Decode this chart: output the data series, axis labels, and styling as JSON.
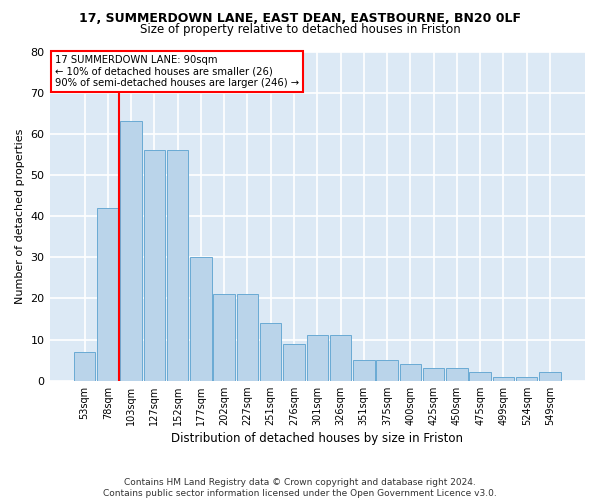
{
  "title": "17, SUMMERDOWN LANE, EAST DEAN, EASTBOURNE, BN20 0LF",
  "subtitle": "Size of property relative to detached houses in Friston",
  "xlabel": "Distribution of detached houses by size in Friston",
  "ylabel": "Number of detached properties",
  "bar_labels": [
    "53sqm",
    "78sqm",
    "103sqm",
    "127sqm",
    "152sqm",
    "177sqm",
    "202sqm",
    "227sqm",
    "251sqm",
    "276sqm",
    "301sqm",
    "326sqm",
    "351sqm",
    "375sqm",
    "400sqm",
    "425sqm",
    "450sqm",
    "475sqm",
    "499sqm",
    "524sqm",
    "549sqm"
  ],
  "bar_heights": [
    7,
    42,
    63,
    56,
    56,
    30,
    21,
    21,
    14,
    9,
    11,
    11,
    5,
    5,
    4,
    3,
    3,
    2,
    1,
    1,
    2
  ],
  "bar_color": "#bad4ea",
  "bar_edge_color": "#6aaad4",
  "annotation_lines": [
    "17 SUMMERDOWN LANE: 90sqm",
    "← 10% of detached houses are smaller (26)",
    "90% of semi-detached houses are larger (246) →"
  ],
  "annotation_box_color": "white",
  "annotation_box_edge_color": "red",
  "footer": "Contains HM Land Registry data © Crown copyright and database right 2024.\nContains public sector information licensed under the Open Government Licence v3.0.",
  "ylim": [
    0,
    80
  ],
  "yticks": [
    0,
    10,
    20,
    30,
    40,
    50,
    60,
    70,
    80
  ],
  "background_color": "#dce9f5",
  "grid_color": "white",
  "title_fontsize": 9,
  "subtitle_fontsize": 8.5,
  "ylabel_fontsize": 8,
  "xlabel_fontsize": 8.5,
  "tick_fontsize": 7,
  "footer_fontsize": 6.5
}
